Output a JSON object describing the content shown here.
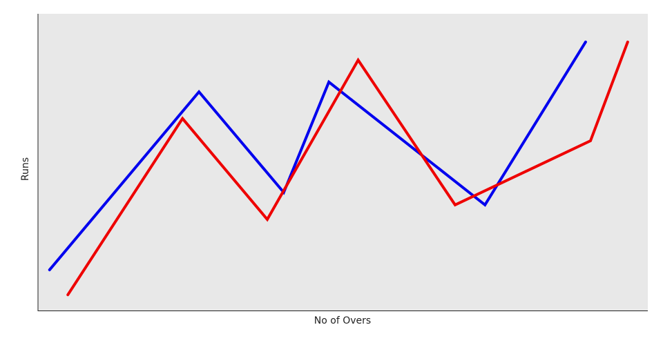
{
  "chart_data": {
    "type": "line",
    "x_label": "No of Overs",
    "y_label": "Runs",
    "xlim": [
      0,
      100
    ],
    "ylim": [
      0,
      100
    ],
    "series": [
      {
        "color": "#0000ee",
        "x": [
          1.9,
          26.4,
          40.3,
          47.7,
          73.3,
          89.8
        ],
        "values": [
          13.7,
          73.7,
          39.8,
          77.0,
          35.6,
          90.5
        ]
      },
      {
        "color": "#ee0000",
        "x": [
          4.9,
          23.7,
          37.6,
          52.5,
          68.4,
          90.6,
          96.7
        ],
        "values": [
          5.3,
          64.7,
          30.7,
          84.4,
          35.6,
          57.2,
          90.5
        ]
      }
    ]
  }
}
